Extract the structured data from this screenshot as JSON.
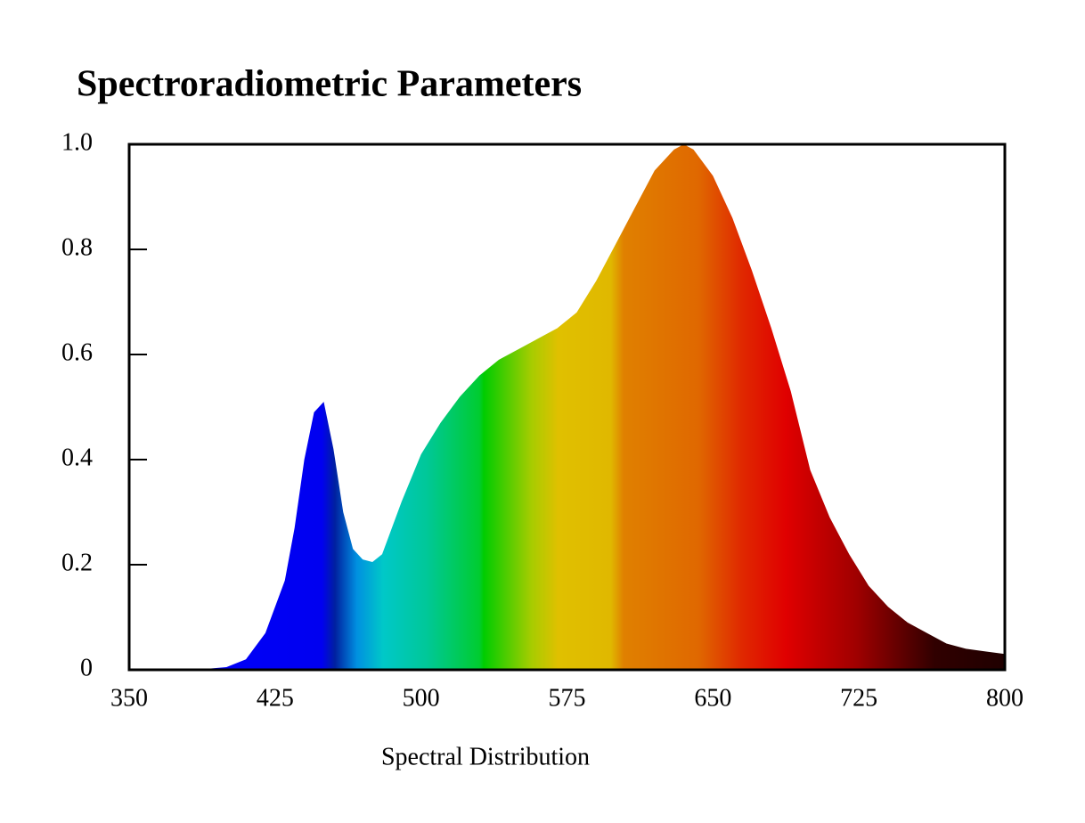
{
  "chart_data": {
    "type": "area",
    "title": "Spectroradiometric Parameters",
    "x_label": "Spectral Distribution",
    "x": [
      380,
      390,
      400,
      410,
      420,
      430,
      435,
      440,
      445,
      450,
      455,
      460,
      465,
      470,
      475,
      480,
      490,
      500,
      510,
      520,
      530,
      540,
      550,
      560,
      570,
      580,
      590,
      600,
      610,
      620,
      630,
      635,
      640,
      650,
      660,
      670,
      680,
      690,
      700,
      710,
      720,
      730,
      740,
      750,
      760,
      770,
      780,
      790,
      800
    ],
    "values": [
      0,
      0.002,
      0.005,
      0.02,
      0.07,
      0.17,
      0.27,
      0.4,
      0.49,
      0.51,
      0.42,
      0.3,
      0.23,
      0.21,
      0.205,
      0.22,
      0.32,
      0.41,
      0.47,
      0.52,
      0.56,
      0.59,
      0.61,
      0.63,
      0.65,
      0.68,
      0.74,
      0.81,
      0.88,
      0.95,
      0.99,
      1.0,
      0.99,
      0.94,
      0.86,
      0.76,
      0.65,
      0.53,
      0.38,
      0.29,
      0.22,
      0.16,
      0.12,
      0.09,
      0.07,
      0.05,
      0.04,
      0.035,
      0.03
    ],
    "xlim": [
      350,
      800
    ],
    "xticks": [
      350,
      425,
      500,
      575,
      650,
      725,
      800
    ],
    "ylim": [
      0,
      1
    ],
    "yticks": [
      0,
      0.2,
      0.4,
      0.6,
      0.8,
      {
        "value": 1,
        "label": "1.0"
      }
    ]
  }
}
